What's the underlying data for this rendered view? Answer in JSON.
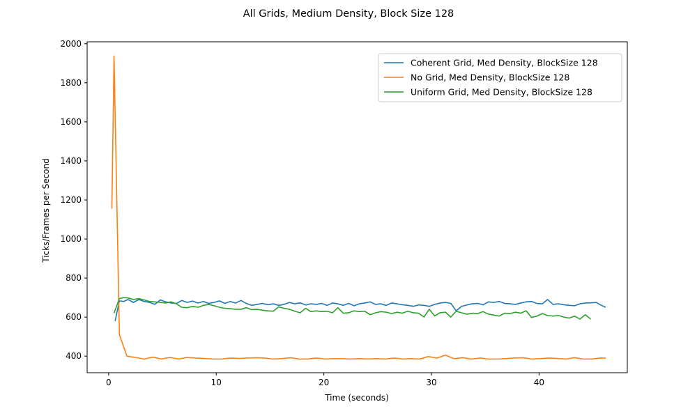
{
  "chart_data": {
    "type": "line",
    "title": "All Grids, Medium Density, Block Size 128",
    "xlabel": "Time (seconds)",
    "ylabel": "Ticks/Frames per Second",
    "xlim": [
      -2.0,
      48.2
    ],
    "ylim": [
      315,
      2010
    ],
    "xticks": [
      0,
      10,
      20,
      30,
      40
    ],
    "yticks": [
      400,
      600,
      800,
      1000,
      1200,
      1400,
      1600,
      1800,
      2000
    ],
    "grid": false,
    "legend_position": "top-right",
    "series": [
      {
        "name": "Coherent Grid, Med Density, BlockSize 128",
        "color": "#1f77b4",
        "x": [
          0.6,
          1.0,
          1.4,
          1.8,
          2.3,
          2.8,
          3.3,
          3.8,
          4.3,
          4.8,
          5.3,
          5.8,
          6.3,
          6.8,
          7.3,
          7.8,
          8.3,
          8.8,
          9.3,
          9.8,
          10.3,
          10.8,
          11.3,
          11.8,
          12.3,
          12.8,
          13.3,
          13.8,
          14.3,
          14.8,
          15.3,
          15.8,
          16.3,
          16.8,
          17.3,
          17.8,
          18.3,
          18.8,
          19.3,
          19.8,
          20.3,
          20.8,
          21.3,
          21.8,
          22.3,
          22.8,
          23.3,
          23.8,
          24.3,
          24.8,
          25.3,
          25.8,
          26.3,
          26.8,
          27.3,
          27.8,
          28.3,
          28.8,
          29.3,
          29.8,
          30.3,
          30.8,
          31.3,
          31.8,
          32.3,
          32.8,
          33.3,
          33.8,
          34.3,
          34.8,
          35.3,
          35.8,
          36.3,
          36.8,
          37.3,
          37.8,
          38.3,
          38.8,
          39.3,
          39.8,
          40.3,
          40.8,
          41.3,
          41.8,
          42.3,
          42.8,
          43.3,
          43.8,
          44.3,
          44.8,
          45.3,
          45.8,
          46.2
        ],
        "values": [
          580,
          683,
          680,
          690,
          675,
          690,
          680,
          675,
          665,
          688,
          678,
          672,
          670,
          685,
          675,
          682,
          672,
          680,
          670,
          675,
          683,
          670,
          680,
          672,
          685,
          670,
          660,
          665,
          670,
          663,
          668,
          660,
          665,
          675,
          668,
          673,
          662,
          668,
          665,
          670,
          660,
          672,
          668,
          660,
          670,
          658,
          668,
          672,
          678,
          665,
          668,
          660,
          672,
          668,
          663,
          660,
          655,
          662,
          660,
          655,
          665,
          672,
          675,
          670,
          632,
          655,
          662,
          668,
          670,
          663,
          678,
          675,
          680,
          670,
          668,
          665,
          672,
          678,
          680,
          670,
          668,
          690,
          665,
          668,
          663,
          660,
          658,
          668,
          672,
          673,
          675,
          660,
          650
        ]
      },
      {
        "name": "No Grid, Med Density, BlockSize 128",
        "color": "#ff7f0e",
        "x": [
          0.3,
          0.5,
          1.0,
          1.7,
          2.5,
          3.3,
          4.1,
          4.9,
          5.7,
          6.5,
          7.3,
          8.1,
          8.9,
          9.7,
          10.5,
          11.3,
          12.1,
          12.9,
          13.7,
          14.5,
          15.3,
          16.1,
          16.9,
          17.7,
          18.5,
          19.3,
          20.1,
          20.9,
          21.7,
          22.5,
          23.3,
          24.1,
          24.9,
          25.7,
          26.5,
          27.3,
          28.1,
          28.9,
          29.7,
          30.5,
          31.3,
          32.1,
          32.9,
          33.7,
          34.5,
          35.3,
          36.1,
          36.9,
          37.7,
          38.5,
          39.3,
          40.1,
          40.9,
          41.7,
          42.5,
          43.3,
          44.1,
          44.9,
          45.7,
          46.2
        ],
        "values": [
          1155,
          1937,
          510,
          400,
          393,
          385,
          395,
          385,
          393,
          385,
          393,
          390,
          388,
          385,
          385,
          390,
          388,
          390,
          392,
          390,
          385,
          387,
          392,
          385,
          385,
          390,
          385,
          387,
          387,
          385,
          387,
          385,
          387,
          385,
          390,
          385,
          387,
          385,
          398,
          390,
          405,
          387,
          392,
          385,
          390,
          385,
          385,
          387,
          390,
          392,
          385,
          387,
          390,
          388,
          385,
          392,
          385,
          385,
          390,
          390
        ]
      },
      {
        "name": "Uniform Grid, Med Density, BlockSize 128",
        "color": "#2ca02c",
        "x": [
          0.5,
          1.0,
          1.4,
          1.8,
          2.3,
          2.8,
          3.3,
          3.8,
          4.3,
          4.8,
          5.3,
          5.8,
          6.3,
          6.8,
          7.3,
          7.8,
          8.3,
          8.8,
          9.3,
          9.8,
          10.3,
          10.8,
          11.3,
          11.8,
          12.3,
          12.8,
          13.3,
          13.8,
          14.3,
          14.8,
          15.3,
          15.8,
          16.3,
          16.8,
          17.3,
          17.8,
          18.3,
          18.8,
          19.3,
          19.8,
          20.3,
          20.8,
          21.3,
          21.8,
          22.3,
          22.8,
          23.3,
          23.8,
          24.3,
          24.8,
          25.3,
          25.8,
          26.3,
          26.8,
          27.3,
          27.8,
          28.3,
          28.8,
          29.3,
          29.8,
          30.3,
          30.8,
          31.3,
          31.8,
          32.3,
          32.8,
          33.3,
          33.8,
          34.3,
          34.8,
          35.3,
          35.8,
          36.3,
          36.8,
          37.3,
          37.8,
          38.3,
          38.8,
          39.3,
          39.8,
          40.3,
          40.8,
          41.3,
          41.8,
          42.3,
          42.8,
          43.3,
          43.8,
          44.3,
          44.8
        ],
        "values": [
          620,
          695,
          700,
          698,
          690,
          695,
          688,
          680,
          678,
          675,
          672,
          678,
          668,
          650,
          648,
          655,
          650,
          660,
          665,
          658,
          650,
          645,
          643,
          640,
          640,
          648,
          638,
          640,
          635,
          632,
          630,
          652,
          645,
          640,
          630,
          622,
          645,
          628,
          632,
          628,
          630,
          622,
          648,
          620,
          622,
          632,
          628,
          630,
          612,
          622,
          628,
          625,
          618,
          625,
          620,
          630,
          622,
          620,
          600,
          640,
          606,
          622,
          625,
          600,
          630,
          622,
          615,
          620,
          618,
          628,
          615,
          610,
          605,
          620,
          618,
          625,
          620,
          632,
          598,
          605,
          618,
          608,
          605,
          608,
          600,
          595,
          605,
          590,
          612,
          590
        ]
      }
    ]
  }
}
